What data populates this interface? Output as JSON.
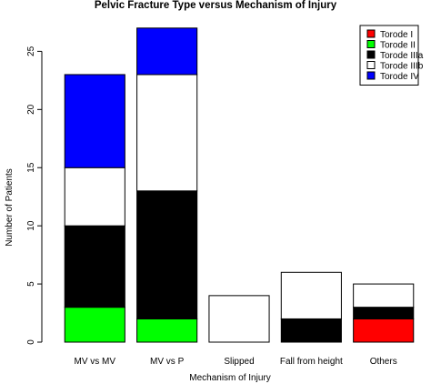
{
  "chart_data": {
    "type": "bar",
    "stacked": true,
    "title": "Pelvic Fracture Type versus Mechanism of Injury",
    "xlabel": "Mechanism of Injury",
    "ylabel": "Number of Patients",
    "ylim": [
      0,
      27.3
    ],
    "yticks": [
      0,
      5,
      10,
      15,
      20,
      25
    ],
    "grid": false,
    "legend_position": "top-right",
    "categories": [
      "MV vs MV",
      "MV vs P",
      "Slipped",
      "Fall from height",
      "Others"
    ],
    "series": [
      {
        "name": "Torode I",
        "color": "#ff0000",
        "values": [
          0,
          0,
          0,
          0,
          2
        ]
      },
      {
        "name": "Torode II",
        "color": "#00ff00",
        "values": [
          3,
          2,
          0,
          0,
          0
        ]
      },
      {
        "name": "Torode IIIa",
        "color": "#000000",
        "values": [
          7,
          11,
          0,
          2,
          1
        ]
      },
      {
        "name": "Torode IIIb",
        "color": "#ffffff",
        "values": [
          5,
          10,
          4,
          4,
          2
        ]
      },
      {
        "name": "Torode IV",
        "color": "#0000ff",
        "values": [
          8,
          4,
          0,
          0,
          0
        ]
      }
    ]
  }
}
